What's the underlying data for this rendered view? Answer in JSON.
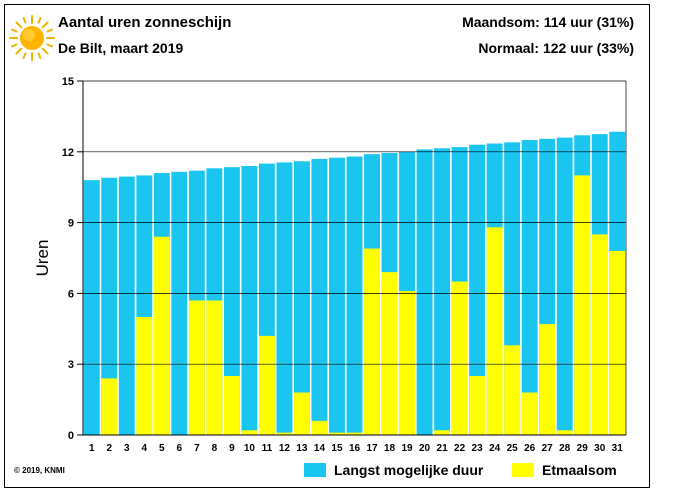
{
  "header": {
    "title": "Aantal uren zonneschijn",
    "subtitle": "De Bilt, maart 2019",
    "month_sum": "Maandsom: 114 uur (31%)",
    "normal": "Normaal: 122 uur (33%)"
  },
  "footer": {
    "copyright": "© 2019, KNMI"
  },
  "colors": {
    "max_duration": "#1ac6f0",
    "daily_sum": "#ffff00"
  },
  "chart_data": {
    "type": "bar",
    "ylabel": "Uren",
    "xlabel": "",
    "ylim": [
      0,
      15
    ],
    "yticks": [
      0,
      3,
      6,
      9,
      12,
      15
    ],
    "grid": "horizontal",
    "legend_position": "bottom-right",
    "categories": [
      "1",
      "2",
      "3",
      "4",
      "5",
      "6",
      "7",
      "8",
      "9",
      "10",
      "11",
      "12",
      "13",
      "14",
      "15",
      "16",
      "17",
      "18",
      "19",
      "20",
      "21",
      "22",
      "23",
      "24",
      "25",
      "26",
      "27",
      "28",
      "29",
      "30",
      "31"
    ],
    "series": [
      {
        "name": "Langst mogelijke duur",
        "values": [
          10.8,
          10.9,
          10.95,
          11.0,
          11.1,
          11.15,
          11.2,
          11.3,
          11.35,
          11.4,
          11.5,
          11.55,
          11.6,
          11.7,
          11.75,
          11.8,
          11.9,
          11.95,
          12.0,
          12.1,
          12.15,
          12.2,
          12.3,
          12.35,
          12.4,
          12.5,
          12.55,
          12.6,
          12.7,
          12.75,
          12.85
        ]
      },
      {
        "name": "Etmaalsom",
        "values": [
          0.0,
          2.4,
          0.0,
          5.0,
          8.4,
          0.0,
          5.7,
          5.7,
          2.5,
          0.2,
          4.2,
          0.1,
          1.8,
          0.6,
          0.1,
          0.1,
          7.9,
          6.9,
          6.1,
          0.0,
          0.2,
          6.5,
          2.5,
          8.8,
          3.8,
          1.8,
          4.7,
          0.2,
          11.0,
          8.5,
          7.8
        ]
      }
    ]
  }
}
